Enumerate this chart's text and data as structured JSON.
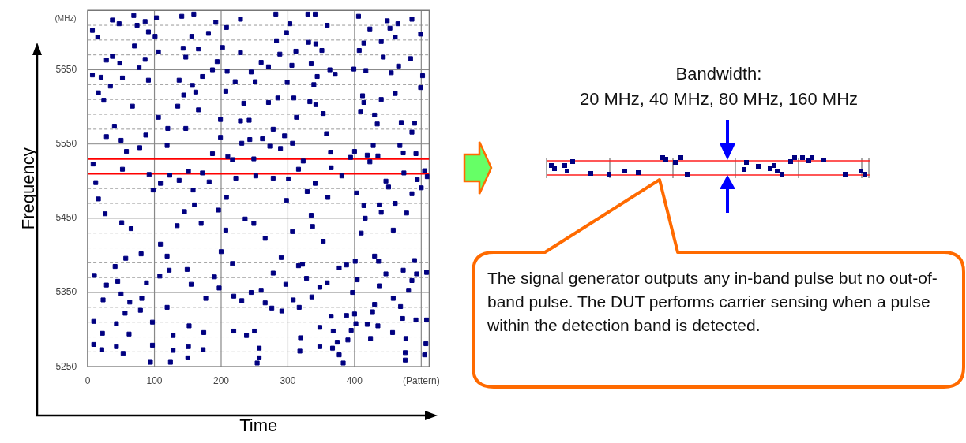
{
  "chart_data": {
    "type": "scatter",
    "xlabel": "Time",
    "ylabel": "Frequency",
    "xlim": [
      0,
      512
    ],
    "xticks": [
      0,
      100,
      200,
      300,
      400,
      {
        "value": 500,
        "label": "(Pattern)"
      }
    ],
    "ylim": [
      5250,
      5730
    ],
    "yticks": [
      5250,
      {
        "value": 5270,
        "label": null
      },
      {
        "value": 5290,
        "label": null
      },
      {
        "value": 5310,
        "label": null
      },
      {
        "value": 5330,
        "label": null
      },
      5350,
      {
        "value": 5370,
        "label": null
      },
      {
        "value": 5390,
        "label": null
      },
      {
        "value": 5410,
        "label": null
      },
      {
        "value": 5430,
        "label": null
      },
      5450,
      {
        "value": 5470,
        "label": null
      },
      {
        "value": 5490,
        "label": null
      },
      5550,
      {
        "value": 5570,
        "label": null
      },
      {
        "value": 5590,
        "label": null
      },
      {
        "value": 5610,
        "label": null
      },
      {
        "value": 5630,
        "label": null
      },
      5650,
      {
        "value": 5670,
        "label": null
      },
      {
        "value": 5690,
        "label": null
      },
      {
        "value": 5710,
        "label": null
      }
    ],
    "grid": true,
    "marker": "square",
    "ref_lines": [
      {
        "axis": "y",
        "value": 5530,
        "color": "#ff0000"
      },
      {
        "axis": "y",
        "value": 5510,
        "color": "#ff0000"
      }
    ],
    "annotations": [
      "(MHz)",
      "Bandwidth:\n20 MHz, 40 MHz, 80 MHz, 160 MHz",
      "The signal generator outputs any in-band pulse but no out-of-band pulse. The DUT performs carrier sensing when a pulse within the detection band is detected."
    ],
    "series": [
      {
        "color": "#000080",
        "x": [
          7,
          15,
          37,
          47,
          69,
          74,
          86,
          91,
          70,
          28,
          37,
          48,
          77,
          86,
          7,
          20,
          52,
          91,
          34,
          16,
          24,
          67,
          40,
          103,
          141,
          159,
          192,
          181,
          156,
          166,
          143,
          106,
          147,
          194,
          187,
          101,
          172,
          137,
          157,
          162,
          144,
          135,
          166,
          106,
          120,
          147,
          199,
          208,
          229,
          202,
          229,
          209,
          221,
          207,
          234,
          229,
          242,
          251,
          245,
          260,
          271,
          282,
          283,
          288,
          271,
          285,
          278,
          303,
          298,
          312,
          306,
          299,
          309,
          313,
          330,
          341,
          331,
          342,
          351,
          359,
          335,
          363,
          371,
          344,
          339,
          333,
          342,
          353,
          358,
          399,
          406,
          423,
          414,
          407,
          440,
          449,
          453,
          465,
          461,
          486,
          499,
          484,
          443,
          466,
          417,
          455,
          502,
          499,
          412,
          414,
          440,
          461,
          409,
          430,
          434,
          470,
          490,
          486,
          8,
          12,
          28,
          50,
          58,
          52,
          16,
          26,
          51,
          65,
          78,
          87,
          92,
          98,
          109,
          119,
          123,
          151,
          137,
          158,
          145,
          160,
          172,
          182,
          187,
          199,
          210,
          217,
          249,
          252,
          243,
          231,
          222,
          208,
          196,
          207,
          236,
          262,
          273,
          289,
          278,
          301,
          295,
          307,
          316,
          323,
          298,
          329,
          341,
          335,
          360,
          364,
          365,
          381,
          394,
          400,
          403,
          419,
          428,
          435,
          423,
          447,
          451,
          437,
          440,
          473,
          468,
          474,
          492,
          505,
          509,
          494,
          500,
          486,
          461,
          414,
          478,
          416,
          458,
          410,
          337,
          353,
          307,
          266,
          249,
          134,
          170,
          109,
          10,
          9,
          9,
          21,
          22,
          23,
          28,
          41,
          45,
          50,
          43,
          43,
          53,
          56,
          63,
          62,
          57,
          80,
          79,
          81,
          88,
          97,
          97,
          94,
          108,
          119,
          122,
          119,
          128,
          128,
          124,
          149,
          155,
          152,
          151,
          150,
          177,
          174,
          173,
          190,
          200,
          197,
          219,
          219,
          217,
          231,
          238,
          250,
          245,
          257,
          257,
          254,
          266,
          260,
          278,
          276,
          291,
          290,
          297,
          308,
          316,
          322,
          328,
          317,
          319,
          318,
          336,
          348,
          359,
          348,
          348,
          365,
          368,
          367,
          377,
          383,
          374,
          390,
          388,
          400,
          395,
          402,
          401,
          404,
          388,
          377,
          397,
          419,
          424,
          427,
          430,
          435,
          430,
          436,
          437,
          447,
          458,
          457,
          472,
          469,
          477,
          476,
          476,
          481,
          486,
          492,
          493,
          490,
          473,
          508,
          507,
          505,
          508
        ],
        "values": [
          5703,
          5694,
          5717,
          5712,
          5723,
          5710,
          5715,
          5701,
          5682,
          5663,
          5668,
          5659,
          5653,
          5664,
          5643,
          5640,
          5639,
          5636,
          5628,
          5619,
          5609,
          5601,
          5574,
          5720,
          5722,
          5725,
          5714,
          5699,
          5695,
          5678,
          5679,
          5674,
          5667,
          5661,
          5650,
          5695,
          5641,
          5636,
          5629,
          5620,
          5616,
          5601,
          5596,
          5586,
          5571,
          5571,
          5583,
          5707,
          5718,
          5680,
          5673,
          5648,
          5634,
          5621,
          5605,
          5581,
          5582,
          5634,
          5647,
          5660,
          5654,
          5725,
          5689,
          5671,
          5606,
          5612,
          5570,
          5712,
          5700,
          5675,
          5656,
          5633,
          5612,
          5586,
          5725,
          5725,
          5687,
          5685,
          5676,
          5710,
          5658,
          5650,
          5644,
          5641,
          5630,
          5607,
          5603,
          5591,
          5564,
          5651,
          5722,
          5705,
          5686,
          5676,
          5688,
          5716,
          5706,
          5712,
          5694,
          5718,
          5698,
          5665,
          5667,
          5655,
          5649,
          5646,
          5642,
          5626,
          5615,
          5606,
          5610,
          5618,
          5594,
          5589,
          5577,
          5579,
          5578,
          5566,
          5523,
          5498,
          5560,
          5555,
          5540,
          5516,
          5476,
          5456,
          5444,
          5436,
          5545,
          5562,
          5509,
          5488,
          5497,
          5548,
          5508,
          5513,
          5501,
          5488,
          5459,
          5468,
          5511,
          5499,
          5537,
          5559,
          5533,
          5529,
          5530,
          5507,
          5556,
          5551,
          5504,
          5478,
          5461,
          5434,
          5449,
          5557,
          5547,
          5544,
          5504,
          5503,
          5561,
          5551,
          5516,
          5527,
          5474,
          5486,
          5497,
          5454,
          5478,
          5539,
          5518,
          5507,
          5532,
          5540,
          5484,
          5535,
          5548,
          5534,
          5526,
          5500,
          5492,
          5468,
          5458,
          5538,
          5548,
          5511,
          5537,
          5514,
          5506,
          5502,
          5491,
          5483,
          5470,
          5467,
          5457,
          5450,
          5434,
          5430,
          5439,
          5419,
          5432,
          5423,
          5443,
          5440,
          5443,
          5415,
          5373,
          5311,
          5280,
          5273,
          5295,
          5340,
          5360,
          5385,
          5365,
          5348,
          5308,
          5277,
          5268,
          5322,
          5337,
          5294,
          5396,
          5402,
          5326,
          5342,
          5363,
          5310,
          5279,
          5256,
          5372,
          5399,
          5380,
          5330,
          5292,
          5272,
          5256,
          5381,
          5361,
          5305,
          5277,
          5262,
          5342,
          5296,
          5273,
          5371,
          5405,
          5356,
          5345,
          5298,
          5389,
          5339,
          5292,
          5298,
          5350,
          5275,
          5262,
          5255,
          5336,
          5353,
          5376,
          5329,
          5325,
          5397,
          5361,
          5340,
          5386,
          5388,
          5369,
          5330,
          5289,
          5271,
          5344,
          5357,
          5363,
          5303,
          5277,
          5318,
          5298,
          5275,
          5266,
          5255,
          5283,
          5286,
          5319,
          5321,
          5299,
          5308,
          5392,
          5367,
          5387,
          5383,
          5350,
          5307,
          5288,
          5324,
          5334,
          5305,
          5399,
          5392,
          5359,
          5375,
          5342,
          5296,
          5315,
          5331,
          5288,
          5269,
          5259,
          5353,
          5366,
          5313,
          5375,
          5393,
          5380,
          5313,
          5281,
          5266,
          5377
        ]
      }
    ]
  }
}
